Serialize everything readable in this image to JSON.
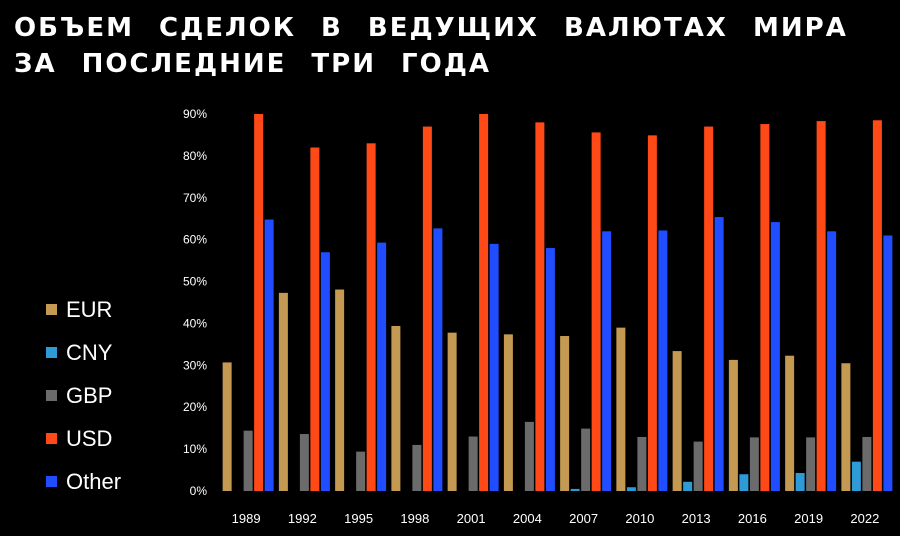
{
  "title": {
    "line1": "ОБЪЕМ СДЕЛОК В ВЕДУЩИХ ВАЛЮТАХ МИРА",
    "line2": "ЗА ПОСЛЕДНИЕ ТРИ ГОДА"
  },
  "chart_data": {
    "type": "bar",
    "title": "ОБЪЕМ СДЕЛОК В ВЕДУЩИХ ВАЛЮТАХ МИРА ЗА ПОСЛЕДНИЕ ТРИ ГОДА",
    "categories": [
      "1989",
      "1992",
      "1995",
      "1998",
      "2001",
      "2004",
      "2007",
      "2010",
      "2013",
      "2016",
      "2019",
      "2022"
    ],
    "series": [
      {
        "name": "EUR",
        "color": "#c49a52",
        "values": [
          30.7,
          47.3,
          48.1,
          39.4,
          37.8,
          37.4,
          37.0,
          39.0,
          33.4,
          31.3,
          32.3,
          30.5
        ]
      },
      {
        "name": "CNY",
        "color": "#2e9bd6",
        "values": [
          0,
          0,
          0,
          0,
          0,
          0,
          0.5,
          0.9,
          2.2,
          4.0,
          4.3,
          7.0
        ]
      },
      {
        "name": "GBP",
        "color": "#6b6b6b",
        "values": [
          14.4,
          13.6,
          9.4,
          11.0,
          13.0,
          16.5,
          14.9,
          12.9,
          11.8,
          12.8,
          12.8,
          12.9
        ]
      },
      {
        "name": "USD",
        "color": "#ff4a17",
        "values": [
          90.0,
          82.0,
          83.0,
          87.0,
          90.0,
          88.0,
          85.6,
          84.9,
          87.0,
          87.6,
          88.3,
          88.5
        ]
      },
      {
        "name": "Other",
        "color": "#1f4dff",
        "values": [
          64.8,
          57.0,
          59.3,
          62.7,
          59.0,
          58.0,
          62.0,
          62.2,
          65.4,
          64.2,
          62.0,
          61.0
        ]
      }
    ],
    "legend_order": [
      "EUR",
      "CNY",
      "GBP",
      "USD",
      "Other"
    ],
    "yticks": [
      "0%",
      "10%",
      "20%",
      "30%",
      "40%",
      "50%",
      "60%",
      "70%",
      "80%",
      "90%"
    ],
    "ylim": [
      0,
      90
    ],
    "ylabel": "",
    "xlabel": "",
    "grid": false,
    "legend_position": "left"
  }
}
